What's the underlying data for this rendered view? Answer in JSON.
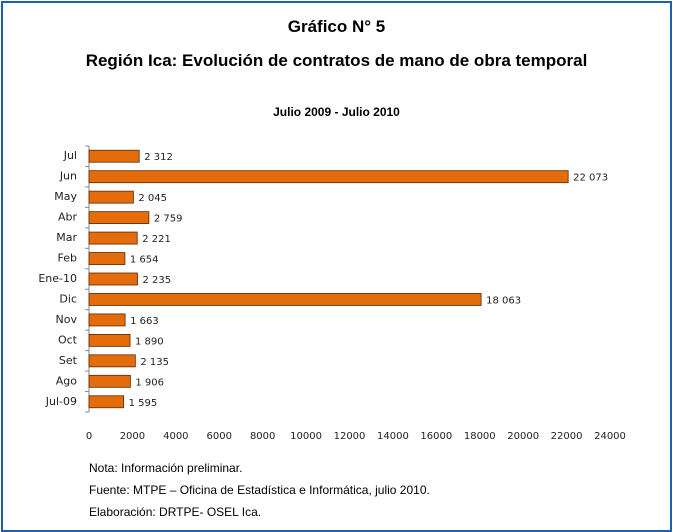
{
  "chart_data": {
    "type": "hbar",
    "title": "Gráfico N° 5",
    "subtitle": "Región Ica: Evolución de contratos de mano de obra temporal",
    "period": "Julio 2009 - Julio 2010",
    "categories": [
      "Jul",
      "Jun",
      "May",
      "Abr",
      "Mar",
      "Feb",
      "Ene-10",
      "Dic",
      "Nov",
      "Oct",
      "Set",
      "Ago",
      "Jul-09"
    ],
    "values": [
      2312,
      22073,
      2045,
      2759,
      2221,
      1654,
      2235,
      18063,
      1663,
      1890,
      2135,
      1906,
      1595
    ],
    "value_labels": [
      "2 312",
      "22 073",
      "2 045",
      "2 759",
      "2 221",
      "1 654",
      "2 235",
      "18 063",
      "1 663",
      "1 890",
      "2 135",
      "1 906",
      "1 595"
    ],
    "color": "#e46c0a",
    "xlim": [
      0,
      24000
    ],
    "xticks": [
      0,
      2000,
      4000,
      6000,
      8000,
      10000,
      12000,
      14000,
      16000,
      18000,
      20000,
      22000,
      24000
    ],
    "notes": [
      "Nota: Información preliminar.",
      "Fuente: MTPE – Oficina de Estadística e Informática, julio 2010.",
      "Elaboración: DRTPE- OSEL Ica."
    ]
  }
}
